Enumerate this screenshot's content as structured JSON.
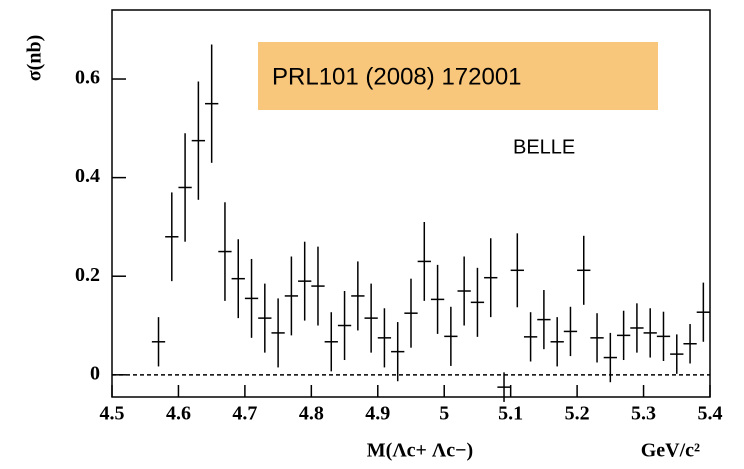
{
  "chart_data": {
    "type": "errorbar",
    "y_label": "σ(nb)",
    "x_label": "M(Λc+ Λc−)",
    "x_unit": "GeV/c²",
    "annotations": [
      "PRL101 (2008) 172001",
      "BELLE"
    ],
    "xlim": [
      4.5,
      5.4
    ],
    "xticks": [
      4.5,
      4.6,
      4.7,
      4.8,
      4.9,
      5,
      5.1,
      5.2,
      5.3,
      5.4
    ],
    "ylim": [
      -0.045,
      0.74
    ],
    "yticks": [
      0,
      0.2,
      0.4,
      0.6
    ],
    "hline": 0,
    "x_halfwidth": 0.01,
    "color": "#000000",
    "box_color": "#f9c77c",
    "series": [
      {
        "name": "BELLE",
        "x": [
          4.57,
          4.59,
          4.61,
          4.63,
          4.65,
          4.67,
          4.69,
          4.71,
          4.73,
          4.75,
          4.77,
          4.79,
          4.81,
          4.83,
          4.85,
          4.87,
          4.89,
          4.91,
          4.93,
          4.95,
          4.97,
          4.99,
          5.01,
          5.03,
          5.05,
          5.07,
          5.09,
          5.11,
          5.13,
          5.15,
          5.17,
          5.19,
          5.21,
          5.23,
          5.25,
          5.27,
          5.29,
          5.31,
          5.33,
          5.35,
          5.37,
          5.39
        ],
        "values": [
          0.067,
          0.28,
          0.38,
          0.475,
          0.55,
          0.25,
          0.195,
          0.155,
          0.115,
          0.085,
          0.16,
          0.19,
          0.18,
          0.067,
          0.1,
          0.16,
          0.115,
          0.075,
          0.047,
          0.125,
          0.23,
          0.153,
          0.078,
          0.17,
          0.147,
          0.197,
          -0.025,
          0.212,
          0.077,
          0.112,
          0.067,
          0.088,
          0.212,
          0.075,
          0.035,
          0.08,
          0.095,
          0.085,
          0.078,
          0.042,
          0.063,
          0.127
        ],
        "errors": [
          0.05,
          0.09,
          0.11,
          0.12,
          0.12,
          0.1,
          0.08,
          0.08,
          0.07,
          0.07,
          0.08,
          0.08,
          0.08,
          0.06,
          0.07,
          0.07,
          0.07,
          0.06,
          0.06,
          0.07,
          0.08,
          0.07,
          0.06,
          0.07,
          0.07,
          0.08,
          0.03,
          0.075,
          0.05,
          0.06,
          0.05,
          0.05,
          0.07,
          0.05,
          0.05,
          0.05,
          0.05,
          0.05,
          0.05,
          0.04,
          0.04,
          0.06
        ]
      }
    ]
  }
}
